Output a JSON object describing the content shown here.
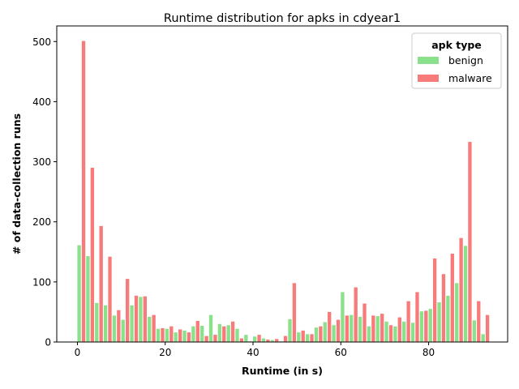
{
  "chart_data": {
    "type": "bar",
    "title": "Runtime distribution for apks in cdyear1",
    "xlabel": "Runtime (in s)",
    "ylabel": "# of data-collection runs",
    "xlim": [
      -4.7,
      98.0
    ],
    "ylim": [
      0,
      526
    ],
    "x_ticks": [
      0,
      20,
      40,
      60,
      80
    ],
    "y_ticks": [
      0,
      100,
      200,
      300,
      400,
      500
    ],
    "grid": false,
    "legend": {
      "title": "apk type",
      "position": "top-right"
    },
    "bin_width": 2,
    "bin_starts": [
      0,
      2,
      4,
      6,
      8,
      10,
      12,
      14,
      16,
      18,
      20,
      22,
      24,
      26,
      28,
      30,
      32,
      34,
      36,
      38,
      40,
      42,
      44,
      46,
      48,
      50,
      52,
      54,
      56,
      58,
      60,
      62,
      64,
      66,
      68,
      70,
      72,
      74,
      76,
      78,
      80,
      82,
      84,
      86,
      88,
      90,
      92
    ],
    "series": [
      {
        "name": "benign",
        "color": "#8be08b",
        "values": [
          161,
          143,
          65,
          61,
          44,
          37,
          61,
          75,
          42,
          22,
          22,
          16,
          19,
          26,
          27,
          45,
          30,
          28,
          22,
          12,
          9,
          6,
          3,
          1,
          38,
          16,
          13,
          24,
          33,
          28,
          83,
          45,
          42,
          26,
          43,
          34,
          26,
          34,
          32,
          51,
          55,
          66,
          77,
          98,
          160,
          36,
          13
        ]
      },
      {
        "name": "malware",
        "color": "#f77b7b",
        "values": [
          501,
          290,
          193,
          142,
          53,
          105,
          77,
          76,
          45,
          23,
          26,
          21,
          16,
          35,
          10,
          12,
          26,
          34,
          6,
          1,
          12,
          4,
          5,
          10,
          98,
          19,
          13,
          26,
          50,
          37,
          44,
          91,
          64,
          44,
          47,
          28,
          41,
          68,
          83,
          52,
          139,
          113,
          147,
          173,
          333,
          68,
          45
        ]
      }
    ]
  }
}
